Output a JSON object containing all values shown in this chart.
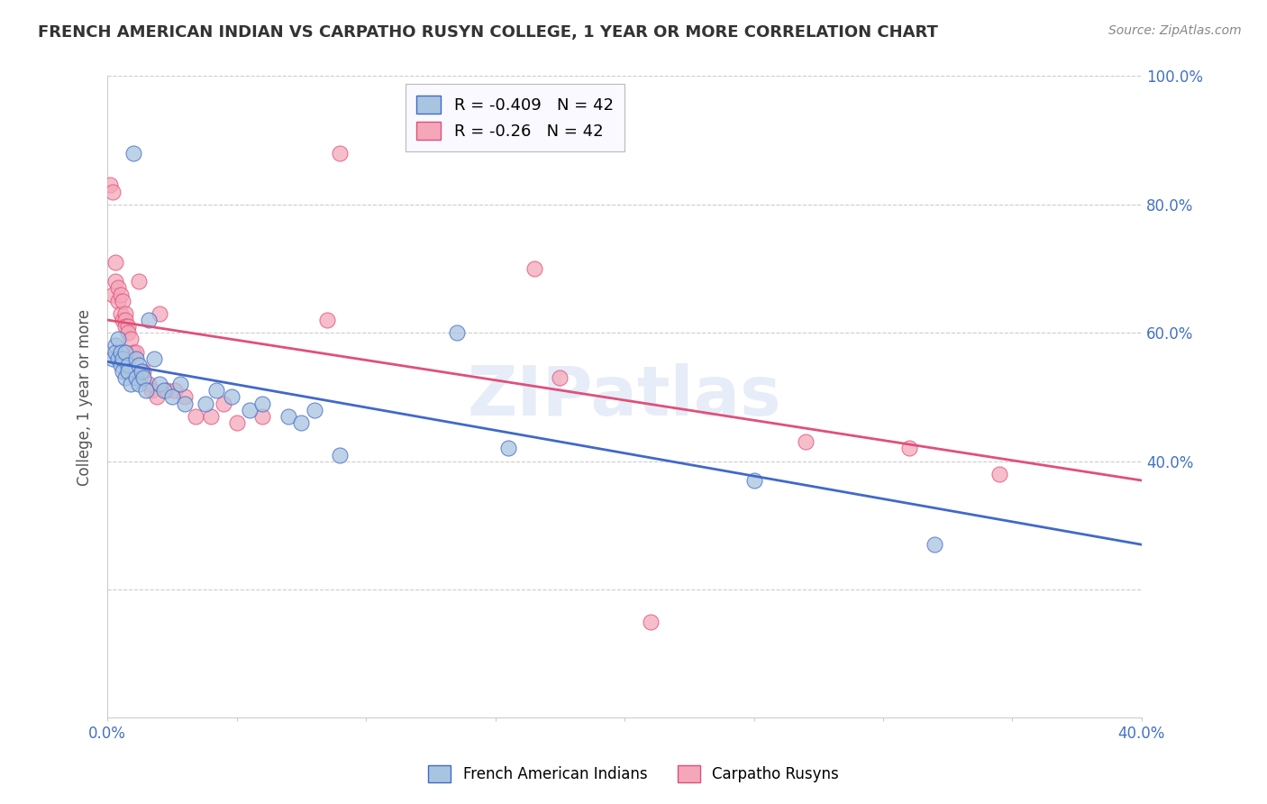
{
  "title": "FRENCH AMERICAN INDIAN VS CARPATHO RUSYN COLLEGE, 1 YEAR OR MORE CORRELATION CHART",
  "source": "Source: ZipAtlas.com",
  "ylabel": "College, 1 year or more",
  "xlim": [
    0.0,
    0.4
  ],
  "ylim": [
    0.0,
    1.0
  ],
  "blue_R": -0.409,
  "blue_N": 42,
  "pink_R": -0.26,
  "pink_N": 42,
  "blue_color": "#a8c4e0",
  "pink_color": "#f4a7b9",
  "blue_line_color": "#4169c8",
  "pink_line_color": "#e0507a",
  "blue_label": "French American Indians",
  "pink_label": "Carpatho Rusyns",
  "watermark": "ZIPatlas",
  "blue_x": [
    0.002,
    0.003,
    0.003,
    0.004,
    0.004,
    0.005,
    0.005,
    0.006,
    0.006,
    0.007,
    0.007,
    0.008,
    0.008,
    0.009,
    0.01,
    0.011,
    0.011,
    0.012,
    0.012,
    0.013,
    0.014,
    0.015,
    0.016,
    0.018,
    0.02,
    0.022,
    0.025,
    0.028,
    0.03,
    0.038,
    0.042,
    0.048,
    0.055,
    0.06,
    0.07,
    0.075,
    0.08,
    0.09,
    0.135,
    0.155,
    0.25,
    0.32
  ],
  "blue_y": [
    0.56,
    0.58,
    0.57,
    0.59,
    0.56,
    0.57,
    0.55,
    0.56,
    0.54,
    0.57,
    0.53,
    0.55,
    0.54,
    0.52,
    0.88,
    0.56,
    0.53,
    0.55,
    0.52,
    0.54,
    0.53,
    0.51,
    0.62,
    0.56,
    0.52,
    0.51,
    0.5,
    0.52,
    0.49,
    0.49,
    0.51,
    0.5,
    0.48,
    0.49,
    0.47,
    0.46,
    0.48,
    0.41,
    0.6,
    0.42,
    0.37,
    0.27
  ],
  "pink_x": [
    0.001,
    0.002,
    0.002,
    0.003,
    0.003,
    0.004,
    0.004,
    0.005,
    0.005,
    0.006,
    0.006,
    0.007,
    0.007,
    0.007,
    0.008,
    0.008,
    0.009,
    0.01,
    0.011,
    0.012,
    0.013,
    0.014,
    0.016,
    0.017,
    0.019,
    0.02,
    0.023,
    0.026,
    0.03,
    0.034,
    0.04,
    0.045,
    0.05,
    0.06,
    0.085,
    0.09,
    0.165,
    0.175,
    0.21,
    0.27,
    0.31,
    0.345
  ],
  "pink_y": [
    0.83,
    0.82,
    0.66,
    0.71,
    0.68,
    0.67,
    0.65,
    0.66,
    0.63,
    0.65,
    0.62,
    0.63,
    0.62,
    0.61,
    0.61,
    0.6,
    0.59,
    0.57,
    0.57,
    0.68,
    0.54,
    0.54,
    0.52,
    0.51,
    0.5,
    0.63,
    0.51,
    0.51,
    0.5,
    0.47,
    0.47,
    0.49,
    0.46,
    0.47,
    0.62,
    0.88,
    0.7,
    0.53,
    0.15,
    0.43,
    0.42,
    0.38
  ],
  "blue_trend_x": [
    0.0,
    0.4
  ],
  "blue_trend_y": [
    0.555,
    0.27
  ],
  "pink_trend_x": [
    0.0,
    0.4
  ],
  "pink_trend_y": [
    0.62,
    0.37
  ],
  "background_color": "#ffffff",
  "grid_color": "#cccccc"
}
